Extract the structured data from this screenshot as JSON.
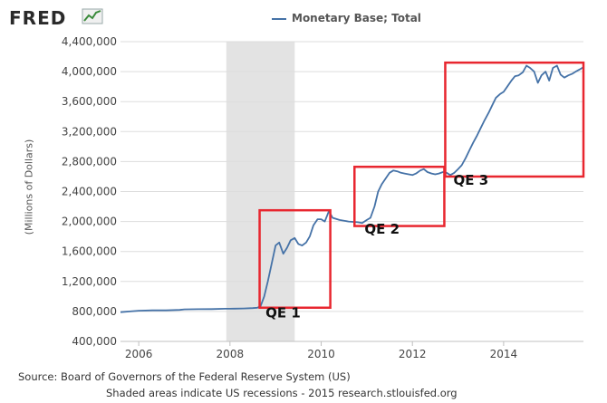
{
  "header": {
    "logo_text": "FRED",
    "logo_icon": "line-chart-icon"
  },
  "legend": {
    "label": "Monetary Base; Total",
    "color": "#4572a7"
  },
  "colors": {
    "series": "#4572a7",
    "recession": "#e3e3e3",
    "annotation": "#e8262f",
    "grid": "#dddddd"
  },
  "footer": {
    "source": "Source: Board of Governors of the Federal Reserve System (US)",
    "note": "Shaded areas indicate US recessions - 2015 research.stlouisfed.org"
  },
  "chart_data": {
    "type": "line",
    "title": "",
    "ylabel": "(Millions of Dollars)",
    "xlabel": "",
    "xlim": [
      2005.6,
      2015.75
    ],
    "ylim": [
      400000,
      4400000
    ],
    "yticks": [
      400000,
      800000,
      1200000,
      1600000,
      2000000,
      2400000,
      2800000,
      3200000,
      3600000,
      4000000,
      4400000
    ],
    "ytick_labels": [
      "400,000",
      "800,000",
      "1,200,000",
      "1,600,000",
      "2,000,000",
      "2,400,000",
      "2,800,000",
      "3,200,000",
      "3,600,000",
      "4,000,000",
      "4,400,000"
    ],
    "xticks": [
      2006,
      2008,
      2010,
      2012,
      2014
    ],
    "xtick_labels": [
      "2006",
      "2008",
      "2010",
      "2012",
      "2014"
    ],
    "grid": true,
    "recessions": [
      {
        "start": 2007.92,
        "end": 2009.42
      }
    ],
    "series": [
      {
        "name": "Monetary Base; Total",
        "x": [
          2005.6,
          2005.8,
          2006.0,
          2006.3,
          2006.6,
          2006.9,
          2007.0,
          2007.3,
          2007.6,
          2007.9,
          2008.1,
          2008.3,
          2008.5,
          2008.6,
          2008.67,
          2008.75,
          2008.83,
          2008.92,
          2009.0,
          2009.08,
          2009.17,
          2009.25,
          2009.33,
          2009.42,
          2009.5,
          2009.58,
          2009.67,
          2009.75,
          2009.83,
          2009.92,
          2010.0,
          2010.08,
          2010.17,
          2010.25,
          2010.4,
          2010.6,
          2010.8,
          2010.9,
          2011.0,
          2011.08,
          2011.17,
          2011.25,
          2011.33,
          2011.42,
          2011.5,
          2011.58,
          2011.67,
          2011.75,
          2011.83,
          2011.92,
          2012.0,
          2012.08,
          2012.17,
          2012.25,
          2012.33,
          2012.42,
          2012.5,
          2012.58,
          2012.67,
          2012.75,
          2012.83,
          2012.92,
          2013.0,
          2013.08,
          2013.17,
          2013.25,
          2013.33,
          2013.42,
          2013.5,
          2013.58,
          2013.67,
          2013.75,
          2013.83,
          2013.92,
          2014.0,
          2014.08,
          2014.17,
          2014.25,
          2014.33,
          2014.42,
          2014.5,
          2014.58,
          2014.67,
          2014.75,
          2014.83,
          2014.92,
          2015.0,
          2015.08,
          2015.17,
          2015.25,
          2015.33,
          2015.42,
          2015.5,
          2015.58,
          2015.67,
          2015.75
        ],
        "values": [
          790000,
          800000,
          810000,
          815000,
          815000,
          820000,
          828000,
          830000,
          832000,
          836000,
          838000,
          840000,
          845000,
          850000,
          870000,
          1000000,
          1200000,
          1450000,
          1680000,
          1720000,
          1570000,
          1650000,
          1750000,
          1780000,
          1700000,
          1680000,
          1720000,
          1800000,
          1950000,
          2030000,
          2030000,
          2000000,
          2140000,
          2050000,
          2020000,
          2000000,
          1990000,
          1980000,
          2020000,
          2050000,
          2200000,
          2400000,
          2500000,
          2580000,
          2650000,
          2680000,
          2670000,
          2650000,
          2640000,
          2630000,
          2620000,
          2640000,
          2680000,
          2700000,
          2660000,
          2640000,
          2630000,
          2640000,
          2660000,
          2650000,
          2620000,
          2650000,
          2700000,
          2750000,
          2850000,
          2950000,
          3050000,
          3150000,
          3250000,
          3350000,
          3450000,
          3550000,
          3650000,
          3700000,
          3730000,
          3800000,
          3880000,
          3940000,
          3950000,
          3990000,
          4080000,
          4050000,
          4000000,
          3850000,
          3950000,
          4000000,
          3880000,
          4050000,
          4080000,
          3960000,
          3920000,
          3950000,
          3970000,
          4000000,
          4030000,
          4060000
        ]
      }
    ],
    "annotations": [
      {
        "label": "QE 1",
        "x0": 2008.65,
        "x1": 2010.2,
        "y0": 850000,
        "y1": 2150000,
        "label_x": 2008.78,
        "label_y": 720000
      },
      {
        "label": "QE 2",
        "x0": 2010.73,
        "x1": 2012.7,
        "y0": 1940000,
        "y1": 2730000,
        "label_x": 2010.95,
        "label_y": 1840000
      },
      {
        "label": "QE 3",
        "x0": 2012.72,
        "x1": 2015.75,
        "y0": 2600000,
        "y1": 4120000,
        "label_x": 2012.9,
        "label_y": 2490000
      }
    ]
  }
}
